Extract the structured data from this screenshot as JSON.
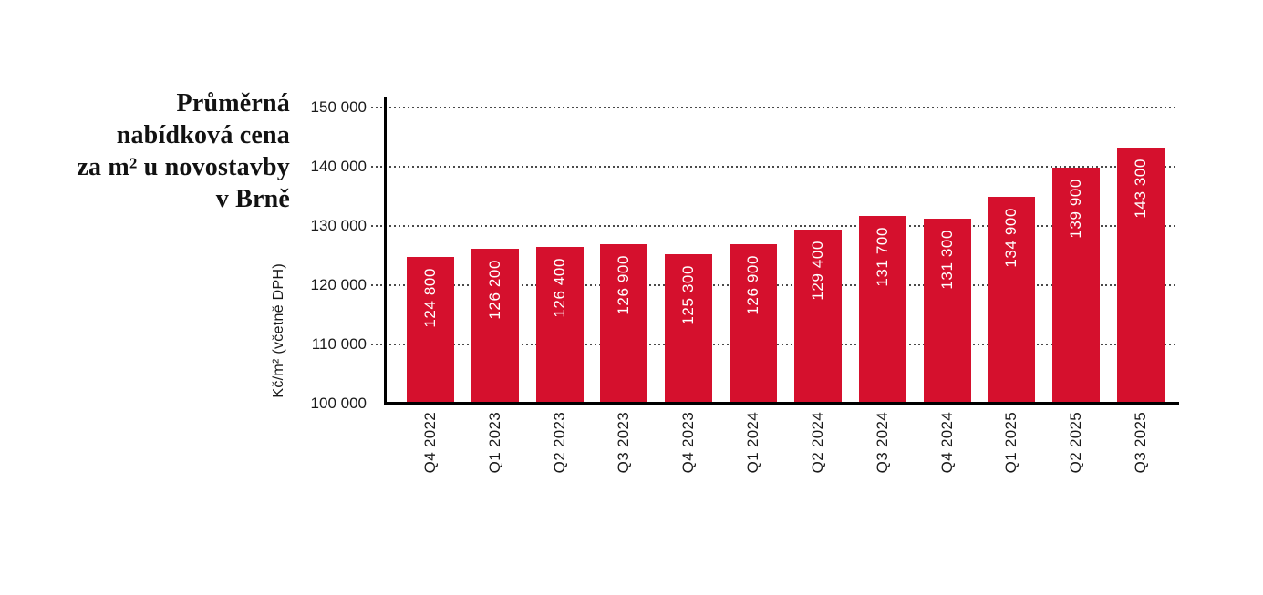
{
  "title": {
    "lines": [
      "Průměrná",
      "nabídková cena",
      "za m² u novostavby",
      "v Brně"
    ]
  },
  "chart_data": {
    "type": "bar",
    "title": "Průměrná nabídková cena za m² u novostavby v Brně",
    "ylabel": "Kč/m² (včetně DPH)",
    "xlabel": "",
    "categories": [
      "Q4 2022",
      "Q1 2023",
      "Q2 2023",
      "Q3 2023",
      "Q4 2023",
      "Q1 2024",
      "Q2 2024",
      "Q3 2024",
      "Q4 2024",
      "Q1 2025",
      "Q2 2025",
      "Q3 2025"
    ],
    "values": [
      124800,
      126200,
      126400,
      126900,
      125300,
      126900,
      129400,
      131700,
      131300,
      134900,
      139900,
      143300
    ],
    "value_labels": [
      "124 800",
      "126 200",
      "126 400",
      "126 900",
      "125 300",
      "126 900",
      "129 400",
      "131 700",
      "131 300",
      "134 900",
      "139 900",
      "143 300"
    ],
    "ylim": [
      100000,
      150000
    ],
    "ytick_values": [
      150000,
      140000,
      130000,
      120000,
      110000,
      100000
    ],
    "ytick_labels": [
      "150 000",
      "140 000",
      "130 000",
      "120 000",
      "110 000",
      "100 000"
    ],
    "grid": "horizontal-dotted",
    "legend": "none",
    "bar_color": "#d5102d",
    "value_label_color": "#ffffff",
    "axis_color": "#000000",
    "text_color": "#1a1a1a"
  }
}
